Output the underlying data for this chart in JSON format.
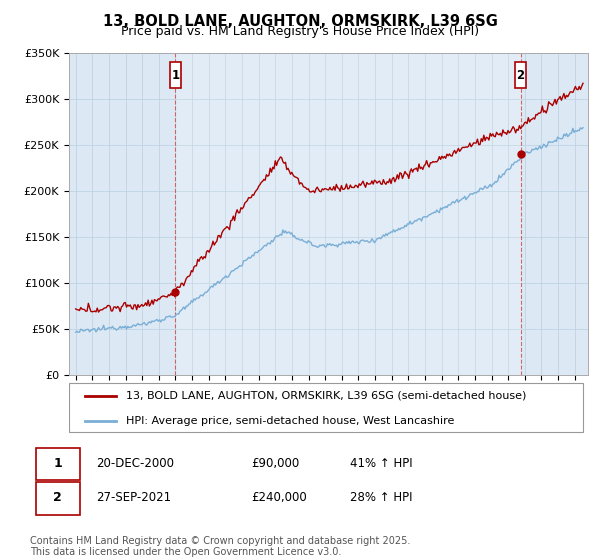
{
  "title": "13, BOLD LANE, AUGHTON, ORMSKIRK, L39 6SG",
  "subtitle": "Price paid vs. HM Land Registry's House Price Index (HPI)",
  "ylim": [
    0,
    350000
  ],
  "yticks": [
    0,
    50000,
    100000,
    150000,
    200000,
    250000,
    300000,
    350000
  ],
  "ytick_labels": [
    "£0",
    "£50K",
    "£100K",
    "£150K",
    "£200K",
    "£250K",
    "£300K",
    "£350K"
  ],
  "xmin": 1994.6,
  "xmax": 2025.8,
  "background_color": "#ffffff",
  "chart_bg_color": "#dce9f5",
  "grid_color": "#b8cfe0",
  "line_color_red": "#aa0000",
  "line_color_blue": "#7aaed6",
  "purchase1_x": 2001.0,
  "purchase1_y": 90000,
  "purchase2_x": 2021.75,
  "purchase2_y": 240000,
  "legend_label_red": "13, BOLD LANE, AUGHTON, ORMSKIRK, L39 6SG (semi-detached house)",
  "legend_label_blue": "HPI: Average price, semi-detached house, West Lancashire",
  "annotation1_label": "1",
  "annotation1_date": "20-DEC-2000",
  "annotation1_price": "£90,000",
  "annotation1_hpi": "41% ↑ HPI",
  "annotation2_label": "2",
  "annotation2_date": "27-SEP-2021",
  "annotation2_price": "£240,000",
  "annotation2_hpi": "28% ↑ HPI",
  "footer": "Contains HM Land Registry data © Crown copyright and database right 2025.\nThis data is licensed under the Open Government Licence v3.0.",
  "title_fontsize": 10.5,
  "subtitle_fontsize": 9,
  "tick_fontsize": 8,
  "legend_fontsize": 8,
  "annotation_fontsize": 8.5,
  "footer_fontsize": 7
}
